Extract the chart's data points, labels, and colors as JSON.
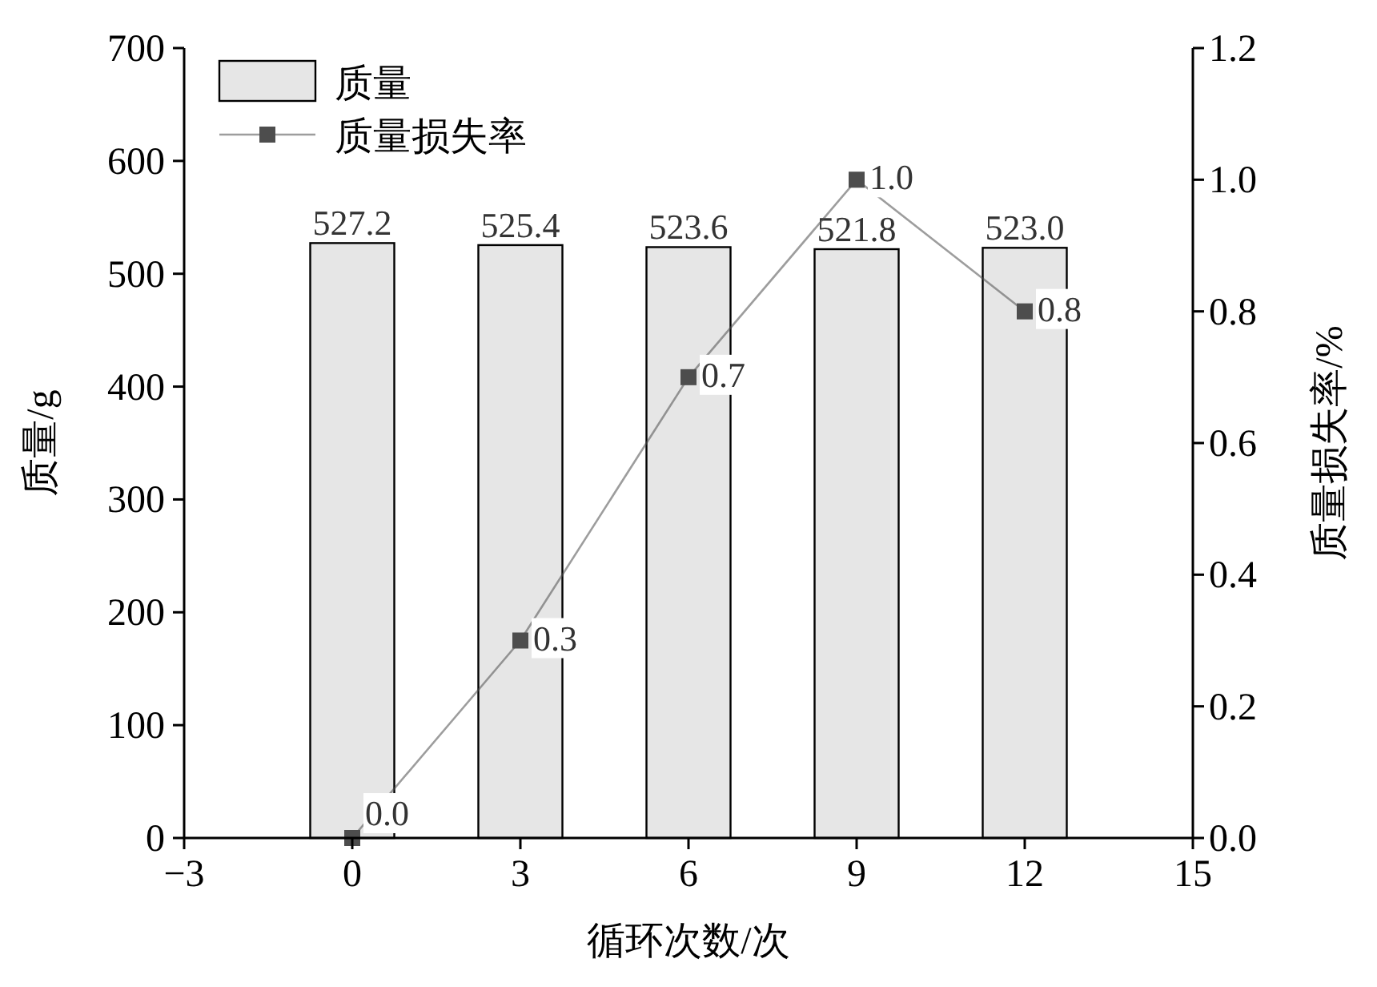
{
  "chart_data": {
    "type": "bar",
    "xlabel": "循环次数/次",
    "ylabel": "质量/g",
    "y2label": "质量损失率/%",
    "x": [
      0,
      3,
      6,
      9,
      12
    ],
    "xlim": [
      -3,
      15
    ],
    "xticks": [
      {
        "value": -3,
        "label": "−3"
      },
      0,
      3,
      6,
      9,
      12,
      15
    ],
    "ylim": [
      0,
      700
    ],
    "yticks": [
      0,
      100,
      200,
      300,
      400,
      500,
      600,
      700
    ],
    "y2lim": [
      0,
      1.2
    ],
    "y2ticks": [
      {
        "value": 0,
        "label": "0.0"
      },
      {
        "value": 0.2,
        "label": "0.2"
      },
      {
        "value": 0.4,
        "label": "0.4"
      },
      {
        "value": 0.6,
        "label": "0.6"
      },
      {
        "value": 0.8,
        "label": "0.8"
      },
      {
        "value": 1.0,
        "label": "1.0"
      },
      {
        "value": 1.2,
        "label": "1.2"
      }
    ],
    "legend": "top left",
    "marker": "square",
    "series": [
      {
        "name": "质量",
        "color": "#e6e6e6",
        "values": [
          527.2,
          525.4,
          523.6,
          521.8,
          523.0
        ],
        "value_labels": [
          "527.2",
          "525.4",
          "523.6",
          "521.8",
          "523.0"
        ]
      },
      {
        "name": "质量损失率",
        "type": "line",
        "axis": "y2",
        "color": "#4d4d4d",
        "values": [
          0.0,
          0.3,
          0.7,
          1.0,
          0.8
        ],
        "value_labels": [
          "0.0",
          "0.3",
          "0.7",
          "1.0",
          "0.8"
        ]
      }
    ]
  }
}
